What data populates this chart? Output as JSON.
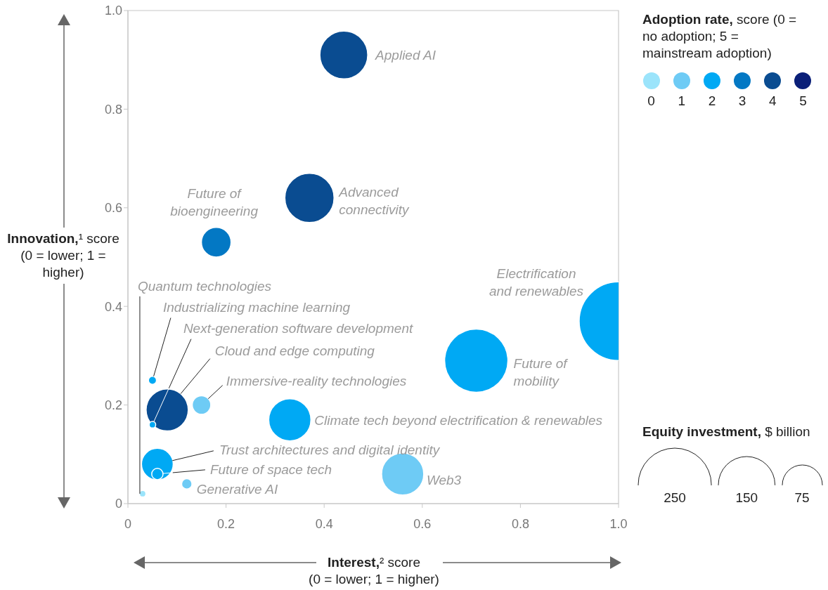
{
  "chart_data": {
    "type": "bubble",
    "xlabel": "Interest,² score (0 = lower; 1 = higher)",
    "ylabel": "Innovation,¹ score (0 = lower; 1 = higher)",
    "legend_title": "Adoption rate, score (0 = no adoption; 5 = mainstream adoption)",
    "legend": "top right",
    "xlim": [
      0,
      1
    ],
    "ylim": [
      0,
      1
    ],
    "xticks": [
      0,
      0.2,
      0.4,
      0.6,
      0.8,
      {
        "value": 1,
        "label": "1.0"
      }
    ],
    "yticks": [
      0,
      0.2,
      0.4,
      0.6,
      0.8,
      {
        "value": 1,
        "label": "1.0"
      }
    ],
    "size_legend": [
      250,
      150,
      75
    ],
    "series": [
      {
        "name": "0",
        "color": "#9be4fb",
        "x": [
          0.03
        ],
        "values": [
          0.02
        ],
        "sizes": [
          2
        ]
      },
      {
        "name": "1",
        "color": "#6ecbf5",
        "x": [
          0.15,
          0.56,
          0.12
        ],
        "values": [
          0.2,
          0.06,
          0.04
        ],
        "sizes": [
          16,
          83,
          5
        ]
      },
      {
        "name": "2",
        "color": "#00a9f4",
        "x": [
          1.0,
          0.71,
          0.33,
          0.05,
          0.05,
          0.06,
          0.06
        ],
        "values": [
          0.37,
          0.29,
          0.17,
          0.16,
          0.25,
          0.08,
          0.06
        ],
        "sizes": [
          290,
          187,
          83,
          2,
          3,
          47,
          6
        ]
      },
      {
        "name": "3",
        "color": "#0378c4",
        "x": [
          0.18
        ],
        "values": [
          0.53
        ],
        "sizes": [
          41
        ]
      },
      {
        "name": "4",
        "color": "#0a4c91",
        "x": [
          0.44,
          0.37,
          0.08
        ],
        "values": [
          0.91,
          0.62,
          0.19
        ],
        "sizes": [
          107,
          113,
          83
        ]
      },
      {
        "name": "5",
        "color": "#0a1f78"
      }
    ],
    "annotations": [
      {
        "text": "Applied AI",
        "x": 0.44,
        "y": 0.91
      },
      {
        "text": "Advanced connectivity",
        "x": 0.37,
        "y": 0.62
      },
      {
        "text": "Future of bioengineering",
        "x": 0.18,
        "y": 0.53
      },
      "Electrification and renewables",
      {
        "text": "Future of mobility",
        "x": 0.71,
        "y": 0.29
      },
      {
        "text": "Climate tech beyond electrification & renewables",
        "x": 0.33,
        "y": 0.17
      },
      {
        "text": "Web3",
        "x": 0.56,
        "y": 0.06
      },
      {
        "text": "Immersive-reality technologies",
        "x": 0.15,
        "y": 0.2
      },
      {
        "text": "Cloud and edge computing",
        "x": 0.08,
        "y": 0.19
      },
      {
        "text": "Next-generation software development",
        "x": 0.05,
        "y": 0.16
      },
      {
        "text": "Industrializing machine learning",
        "x": 0.05,
        "y": 0.25
      },
      {
        "text": "Quantum technologies",
        "x": 0.03,
        "y": 0.02
      },
      {
        "text": "Trust architectures and digital identity",
        "x": 0.06,
        "y": 0.08
      },
      {
        "text": "Future of space tech",
        "x": 0.06,
        "y": 0.06
      },
      {
        "text": "Generative AI",
        "x": 0.12,
        "y": 0.04
      },
      "Equity investment, $ billion"
    ]
  }
}
